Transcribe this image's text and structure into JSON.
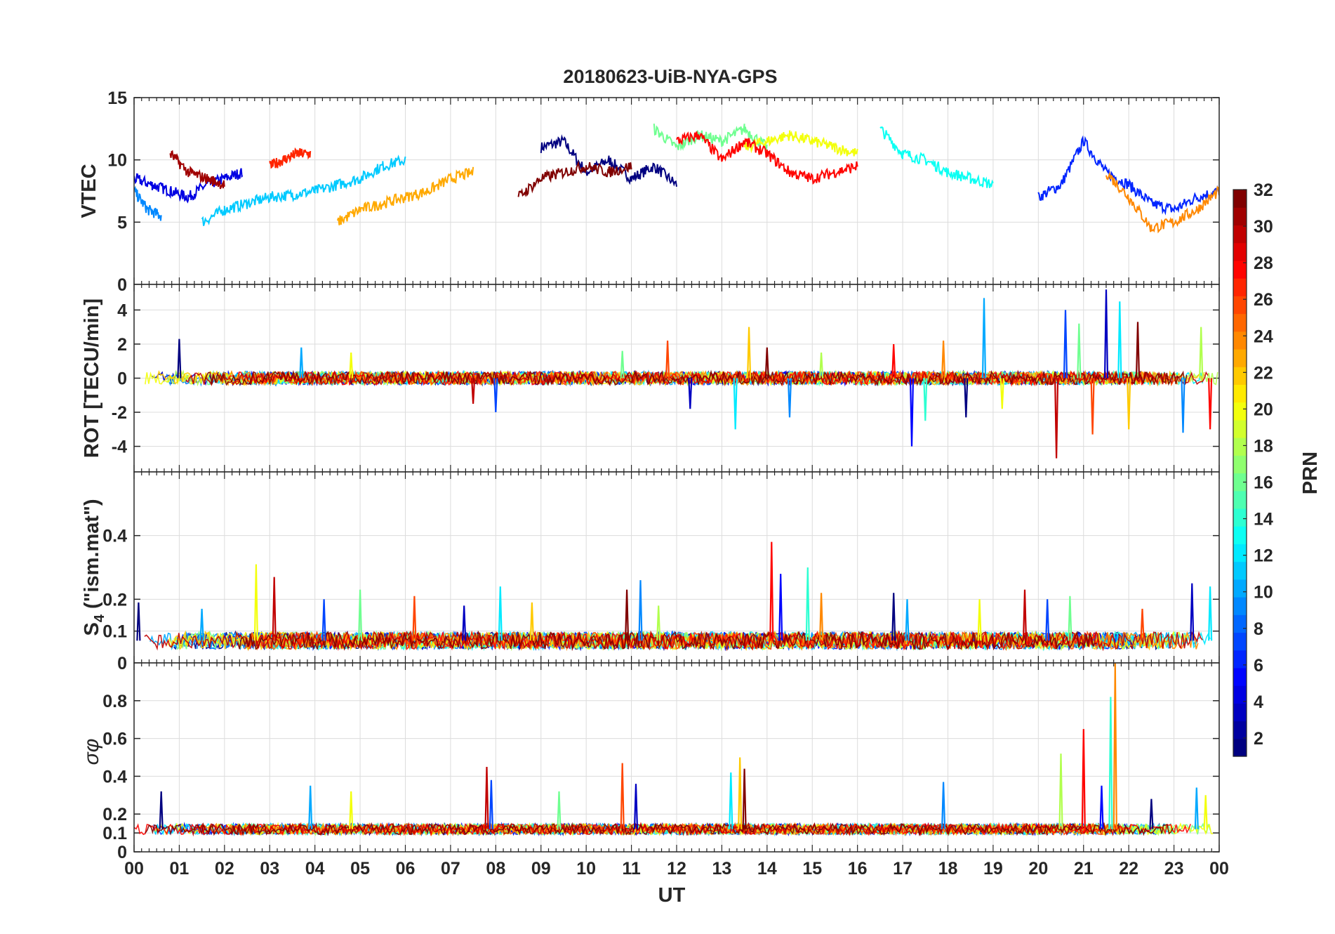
{
  "chart_data": {
    "type": "line",
    "title": "20180623-UiB-NYA-GPS",
    "xlabel": "UT",
    "x_tick_labels": [
      "00",
      "01",
      "02",
      "03",
      "04",
      "05",
      "06",
      "07",
      "08",
      "09",
      "10",
      "11",
      "12",
      "13",
      "14",
      "15",
      "16",
      "17",
      "18",
      "19",
      "20",
      "21",
      "22",
      "23",
      "00"
    ],
    "xlim": [
      0,
      24
    ],
    "grid": true,
    "panels": [
      {
        "id": "vtec",
        "ylabel": "VTEC",
        "ylim": [
          0,
          15
        ],
        "yticks": [
          0,
          5,
          10,
          15
        ],
        "ytick_labels": [
          "0",
          "5",
          "10",
          "15"
        ],
        "series_note": "one line per satellite PRN, colored by PRN",
        "series": [
          {
            "prn": 1,
            "x": [
              9.0,
              9.5,
              10.0,
              10.5,
              11.0,
              11.5,
              12.0
            ],
            "y": [
              11.0,
              11.5,
              9.0,
              10.0,
              8.5,
              9.5,
              8.0
            ]
          },
          {
            "prn": 4,
            "x": [
              0.0,
              0.4,
              0.8,
              1.2,
              1.6,
              2.0,
              2.4
            ],
            "y": [
              8.5,
              8.0,
              7.5,
              7.0,
              8.0,
              8.5,
              9.0
            ]
          },
          {
            "prn": 6,
            "x": [
              20.0,
              20.5,
              21.0,
              21.5,
              22.0,
              22.5,
              23.0,
              23.5,
              24.0
            ],
            "y": [
              7.0,
              8.0,
              11.5,
              9.0,
              8.0,
              6.5,
              6.0,
              7.0,
              7.5
            ]
          },
          {
            "prn": 9,
            "x": [
              0.0,
              0.3,
              0.6
            ],
            "y": [
              7.5,
              6.0,
              5.5
            ]
          },
          {
            "prn": 11,
            "x": [
              1.5,
              2.0,
              2.5,
              3.0,
              3.5,
              4.0,
              4.5,
              5.0,
              5.5,
              6.0
            ],
            "y": [
              5.0,
              6.0,
              6.5,
              7.0,
              7.2,
              7.5,
              8.0,
              8.5,
              9.5,
              10.0
            ]
          },
          {
            "prn": 13,
            "x": [
              16.5,
              17.0,
              17.5,
              18.0,
              18.5,
              19.0
            ],
            "y": [
              12.5,
              10.5,
              10.0,
              9.0,
              8.5,
              8.0
            ]
          },
          {
            "prn": 16,
            "x": [
              11.5,
              12.0,
              12.5,
              13.0,
              13.5,
              14.0
            ],
            "y": [
              12.5,
              11.0,
              12.0,
              11.5,
              12.5,
              11.0
            ]
          },
          {
            "prn": 20,
            "x": [
              13.5,
              14.0,
              14.5,
              15.0,
              15.5,
              16.0
            ],
            "y": [
              11.0,
              11.5,
              12.0,
              11.5,
              11.0,
              10.5
            ]
          },
          {
            "prn": 23,
            "x": [
              4.5,
              5.0,
              5.5,
              6.0,
              6.5,
              7.0,
              7.5
            ],
            "y": [
              5.0,
              6.0,
              6.5,
              7.0,
              7.5,
              8.5,
              9.0
            ]
          },
          {
            "prn": 24,
            "x": [
              21.5,
              22.0,
              22.5,
              23.0,
              23.5,
              24.0
            ],
            "y": [
              9.0,
              7.0,
              4.5,
              5.0,
              6.0,
              7.5
            ]
          },
          {
            "prn": 27,
            "x": [
              3.0,
              3.3,
              3.6,
              3.9
            ],
            "y": [
              9.5,
              10.0,
              10.5,
              10.5
            ]
          },
          {
            "prn": 28,
            "x": [
              12.0,
              12.5,
              13.0,
              13.5,
              14.0,
              14.5,
              15.0,
              15.5,
              16.0
            ],
            "y": [
              11.5,
              12.0,
              10.0,
              11.5,
              10.5,
              9.0,
              8.5,
              9.0,
              9.5
            ]
          },
          {
            "prn": 31,
            "x": [
              0.8,
              1.2,
              1.6,
              2.0
            ],
            "y": [
              10.5,
              9.0,
              8.5,
              8.0
            ]
          },
          {
            "prn": 32,
            "x": [
              8.5,
              9.0,
              9.5,
              10.0,
              10.5,
              11.0
            ],
            "y": [
              7.0,
              8.5,
              9.0,
              9.5,
              9.0,
              9.5
            ]
          }
        ]
      },
      {
        "id": "rot",
        "ylabel": "ROT [TECU/min]",
        "ylim": [
          -5.5,
          5.5
        ],
        "yticks": [
          -4,
          -2,
          0,
          2,
          4
        ],
        "ytick_labels": [
          "-4",
          "-2",
          "0",
          "2",
          "4"
        ],
        "baseline": 0,
        "spikes": [
          {
            "x": 1.0,
            "y": 2.3
          },
          {
            "x": 3.7,
            "y": 1.8
          },
          {
            "x": 4.8,
            "y": 1.5
          },
          {
            "x": 7.5,
            "y": -1.5
          },
          {
            "x": 8.0,
            "y": -2.0
          },
          {
            "x": 10.8,
            "y": 1.6
          },
          {
            "x": 11.8,
            "y": 2.2
          },
          {
            "x": 12.3,
            "y": -1.8
          },
          {
            "x": 13.3,
            "y": -3.0
          },
          {
            "x": 13.6,
            "y": 3.0
          },
          {
            "x": 14.0,
            "y": 1.8
          },
          {
            "x": 14.5,
            "y": -2.3
          },
          {
            "x": 15.2,
            "y": 1.5
          },
          {
            "x": 16.8,
            "y": 2.0
          },
          {
            "x": 17.2,
            "y": -4.0
          },
          {
            "x": 17.5,
            "y": -2.5
          },
          {
            "x": 17.9,
            "y": 2.2
          },
          {
            "x": 18.4,
            "y": -2.3
          },
          {
            "x": 18.8,
            "y": 4.7
          },
          {
            "x": 19.2,
            "y": -1.8
          },
          {
            "x": 20.4,
            "y": -4.7
          },
          {
            "x": 20.6,
            "y": 4.0
          },
          {
            "x": 20.9,
            "y": 3.2
          },
          {
            "x": 21.2,
            "y": -3.3
          },
          {
            "x": 21.5,
            "y": 5.2
          },
          {
            "x": 21.8,
            "y": 4.5
          },
          {
            "x": 22.0,
            "y": -3.0
          },
          {
            "x": 22.2,
            "y": 3.3
          },
          {
            "x": 23.2,
            "y": -3.2
          },
          {
            "x": 23.6,
            "y": 3.0
          },
          {
            "x": 23.8,
            "y": -3.0
          }
        ]
      },
      {
        "id": "s4",
        "ylabel": "S4 (\"ism.mat\")",
        "ylim": [
          0,
          0.6
        ],
        "yticks": [
          0,
          0.1,
          0.2,
          0.4
        ],
        "ytick_labels": [
          "0",
          "0.1",
          "0.2",
          "0.4"
        ],
        "baseline": 0.07,
        "spikes": [
          {
            "x": 0.1,
            "y": 0.19
          },
          {
            "x": 1.5,
            "y": 0.17
          },
          {
            "x": 2.7,
            "y": 0.31
          },
          {
            "x": 3.1,
            "y": 0.27
          },
          {
            "x": 4.2,
            "y": 0.2
          },
          {
            "x": 5.0,
            "y": 0.23
          },
          {
            "x": 6.2,
            "y": 0.21
          },
          {
            "x": 7.3,
            "y": 0.18
          },
          {
            "x": 8.1,
            "y": 0.24
          },
          {
            "x": 8.8,
            "y": 0.19
          },
          {
            "x": 10.9,
            "y": 0.23
          },
          {
            "x": 11.2,
            "y": 0.26
          },
          {
            "x": 11.6,
            "y": 0.18
          },
          {
            "x": 14.1,
            "y": 0.38
          },
          {
            "x": 14.3,
            "y": 0.28
          },
          {
            "x": 14.9,
            "y": 0.3
          },
          {
            "x": 15.2,
            "y": 0.22
          },
          {
            "x": 16.8,
            "y": 0.22
          },
          {
            "x": 17.1,
            "y": 0.2
          },
          {
            "x": 18.7,
            "y": 0.2
          },
          {
            "x": 19.7,
            "y": 0.23
          },
          {
            "x": 20.2,
            "y": 0.2
          },
          {
            "x": 20.7,
            "y": 0.21
          },
          {
            "x": 22.3,
            "y": 0.17
          },
          {
            "x": 23.4,
            "y": 0.25
          },
          {
            "x": 23.8,
            "y": 0.24
          }
        ]
      },
      {
        "id": "sigma_phi",
        "ylabel": "σφ",
        "ylim": [
          0,
          1.0
        ],
        "yticks": [
          0,
          0.1,
          0.2,
          0.4,
          0.6,
          0.8
        ],
        "ytick_labels": [
          "0",
          "0.1",
          "0.2",
          "0.4",
          "0.6",
          "0.8"
        ],
        "baseline": 0.12,
        "spikes": [
          {
            "x": 0.6,
            "y": 0.32
          },
          {
            "x": 3.9,
            "y": 0.35
          },
          {
            "x": 4.8,
            "y": 0.32
          },
          {
            "x": 7.8,
            "y": 0.45
          },
          {
            "x": 7.9,
            "y": 0.38
          },
          {
            "x": 9.4,
            "y": 0.32
          },
          {
            "x": 10.8,
            "y": 0.47
          },
          {
            "x": 11.1,
            "y": 0.36
          },
          {
            "x": 13.2,
            "y": 0.42
          },
          {
            "x": 13.4,
            "y": 0.5
          },
          {
            "x": 13.5,
            "y": 0.44
          },
          {
            "x": 17.9,
            "y": 0.37
          },
          {
            "x": 20.5,
            "y": 0.52
          },
          {
            "x": 21.0,
            "y": 0.65
          },
          {
            "x": 21.4,
            "y": 0.35
          },
          {
            "x": 21.6,
            "y": 0.82
          },
          {
            "x": 21.7,
            "y": 1.0
          },
          {
            "x": 22.5,
            "y": 0.28
          },
          {
            "x": 23.5,
            "y": 0.34
          },
          {
            "x": 23.7,
            "y": 0.3
          }
        ]
      }
    ],
    "colorbar": {
      "label": "PRN",
      "range": [
        1,
        32
      ],
      "ticks": [
        2,
        4,
        6,
        8,
        10,
        12,
        14,
        16,
        18,
        20,
        22,
        24,
        26,
        28,
        30,
        32
      ],
      "tick_labels": [
        "2",
        "4",
        "6",
        "8",
        "10",
        "12",
        "14",
        "16",
        "18",
        "20",
        "22",
        "24",
        "26",
        "28",
        "30",
        "32"
      ],
      "colormap": "jet"
    }
  }
}
